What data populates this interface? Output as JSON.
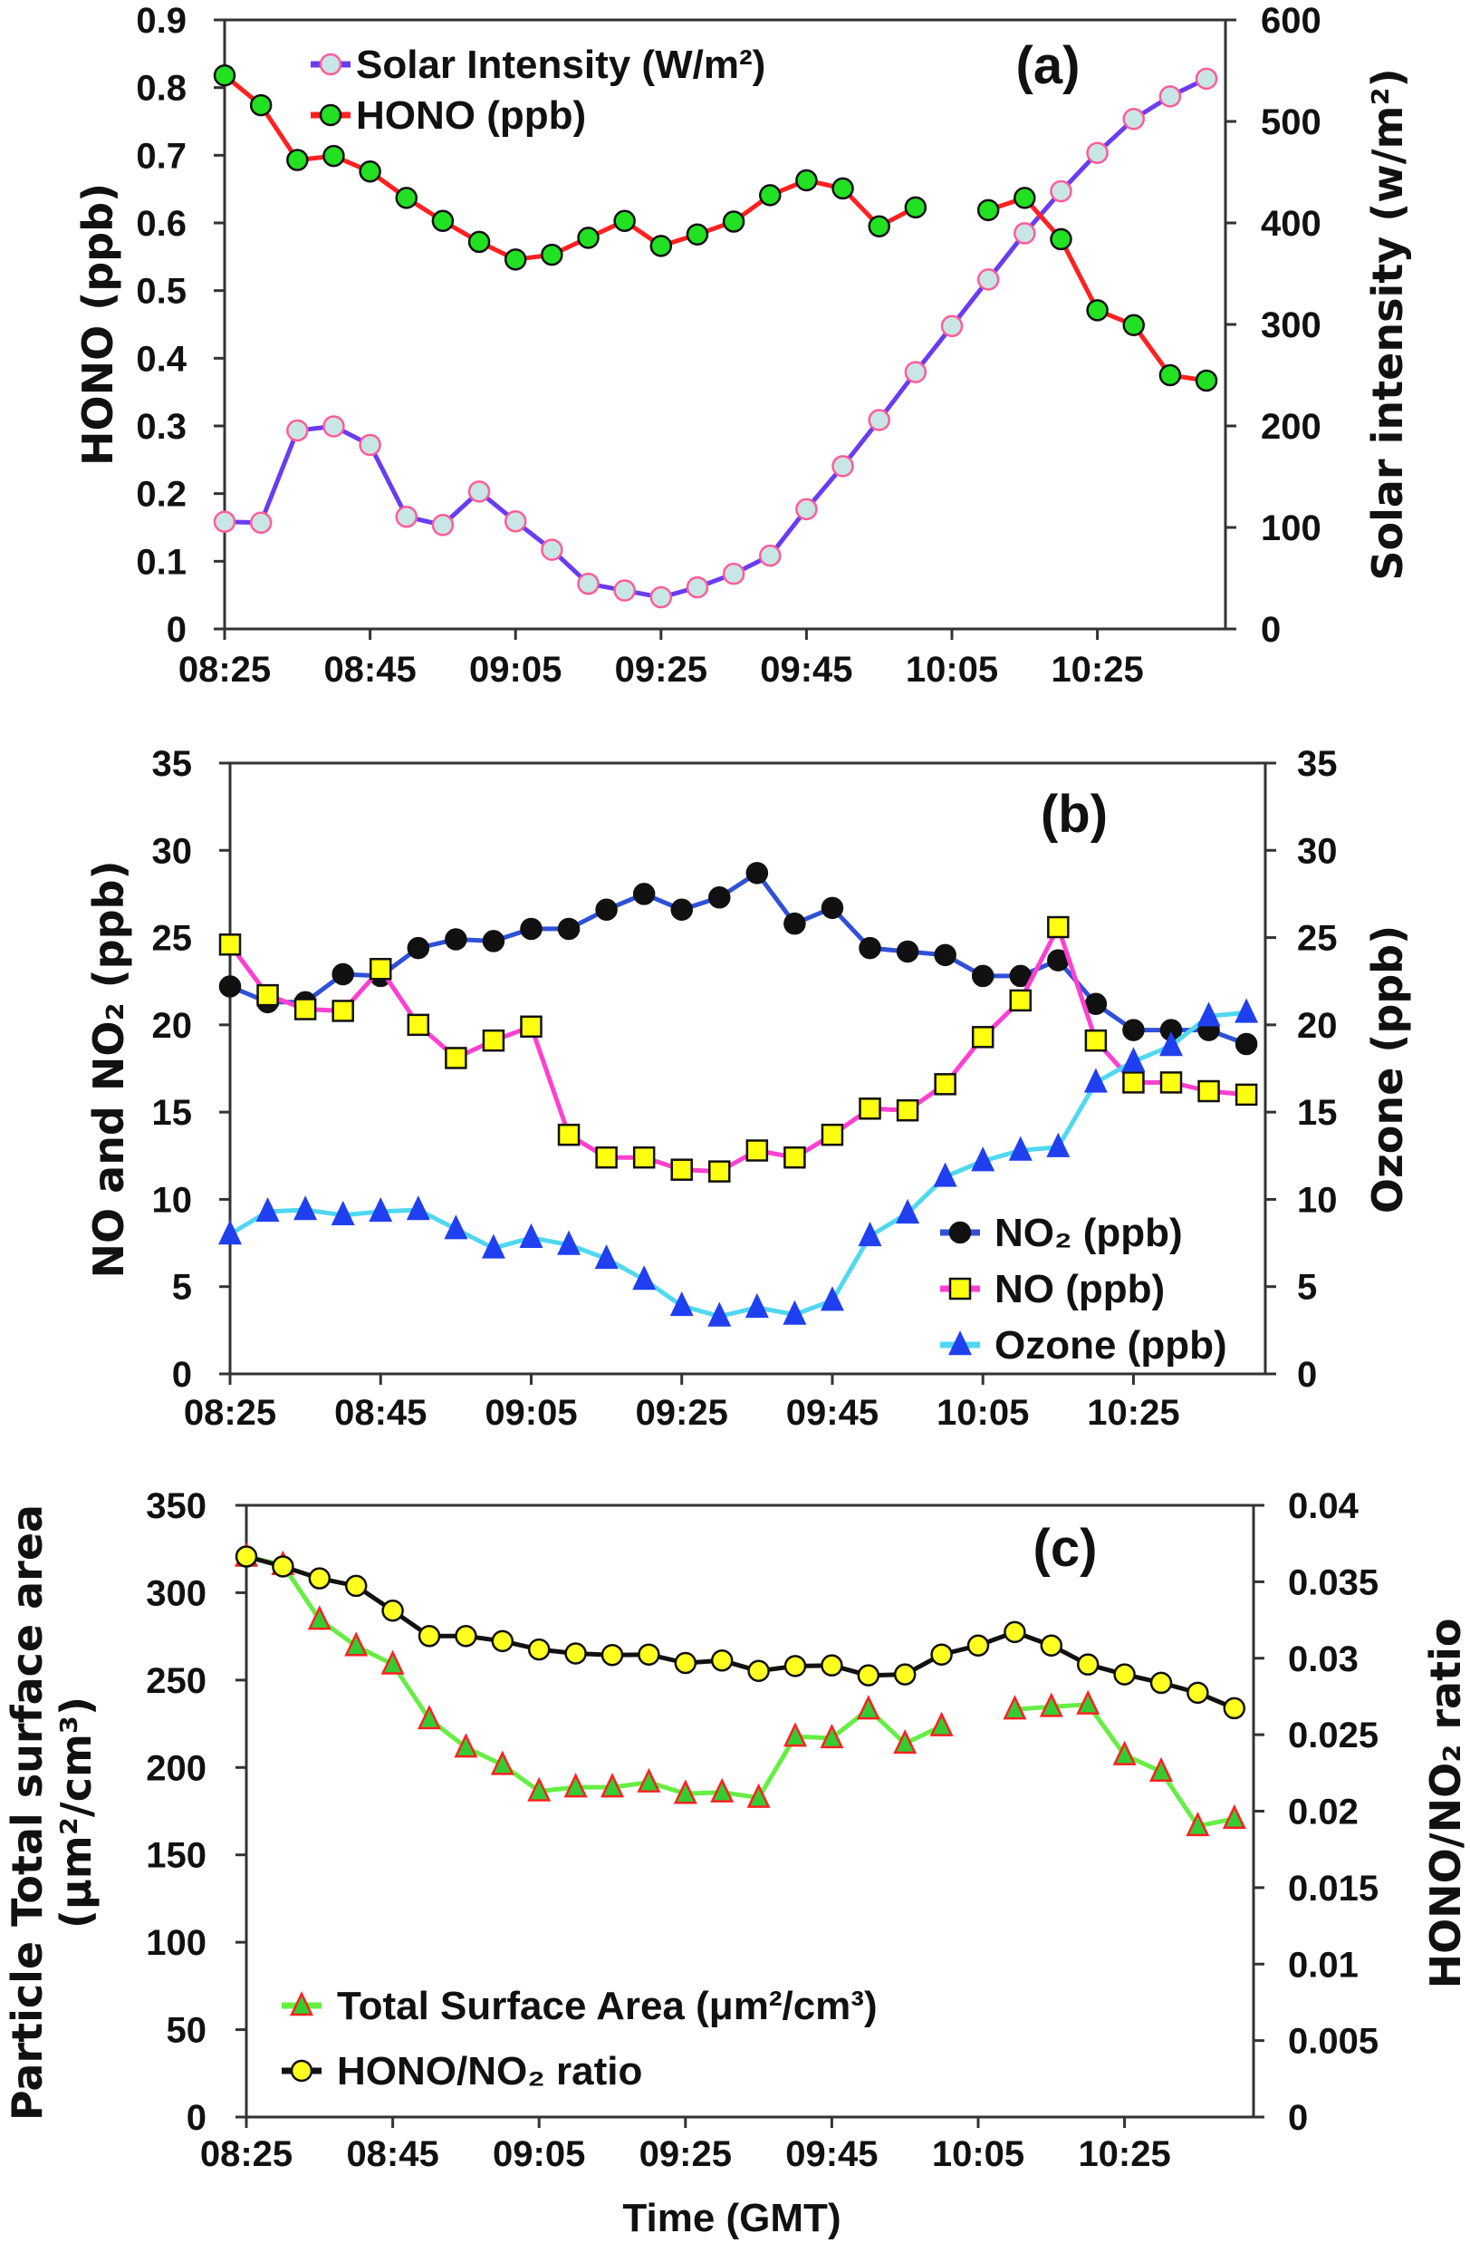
{
  "chart_data": [
    {
      "type": "line",
      "panel_label": "(a)",
      "x": [
        "08:25",
        "08:30",
        "08:35",
        "08:40",
        "08:45",
        "08:50",
        "08:55",
        "09:00",
        "09:05",
        "09:10",
        "09:15",
        "09:20",
        "09:25",
        "09:30",
        "09:35",
        "09:40",
        "09:45",
        "09:50",
        "09:55",
        "10:00",
        "10:05",
        "10:10",
        "10:15",
        "10:20",
        "10:25",
        "10:30",
        "10:35",
        "10:40"
      ],
      "xticks": [
        "08:25",
        "08:45",
        "09:05",
        "09:25",
        "09:45",
        "10:05",
        "10:25"
      ],
      "xlabel": "",
      "ylabel_left": "HONO (ppb)",
      "ylabel_right": "Solar intensity (w/m²)",
      "ylim_left": [
        0,
        0.9
      ],
      "ylim_right": [
        0,
        600
      ],
      "yticks_left": [
        "0",
        "0.1",
        "0.2",
        "0.3",
        "0.4",
        "0.5",
        "0.6",
        "0.7",
        "0.8",
        "0.9"
      ],
      "yticks_right": [
        "0",
        "100",
        "200",
        "300",
        "400",
        "500",
        "600"
      ],
      "grid": false,
      "legend_placement": "top-left",
      "series": [
        {
          "name": "Solar Intensity (W/m²)",
          "axis": "right",
          "line_color": "#6a3cf0",
          "marker": "circle",
          "marker_fill": "#c8e6e6",
          "marker_edge": "#ff5c9a",
          "values": [
            105.6,
            104.7,
            195.5,
            199.6,
            181.3,
            110.5,
            102.4,
            135.4,
            106,
            78,
            44.5,
            37.9,
            31.2,
            41,
            54.3,
            72.2,
            118,
            160.4,
            205.8,
            253,
            298.4,
            344.3,
            389.8,
            431.2,
            469,
            502.4,
            524.7,
            542.1
          ]
        },
        {
          "name": "HONO (ppb)",
          "axis": "left",
          "line_color": "#ff2020",
          "marker": "circle",
          "marker_fill": "#22e022",
          "marker_edge": "#111111",
          "values": [
            0.818,
            0.774,
            0.693,
            0.699,
            0.676,
            0.637,
            0.603,
            0.572,
            0.546,
            0.553,
            0.578,
            0.603,
            0.566,
            0.583,
            0.602,
            0.641,
            0.663,
            0.651,
            0.595,
            0.623,
            null,
            0.619,
            0.637,
            0.576,
            0.471,
            0.449,
            0.375,
            0.367
          ]
        }
      ]
    },
    {
      "type": "line",
      "panel_label": "(b)",
      "x": [
        "08:25",
        "08:30",
        "08:35",
        "08:40",
        "08:45",
        "08:50",
        "08:55",
        "09:00",
        "09:05",
        "09:10",
        "09:15",
        "09:20",
        "09:25",
        "09:30",
        "09:35",
        "09:40",
        "09:45",
        "09:50",
        "09:55",
        "10:00",
        "10:05",
        "10:10",
        "10:15",
        "10:20",
        "10:25",
        "10:30",
        "10:35",
        "10:40"
      ],
      "xticks": [
        "08:25",
        "08:45",
        "09:05",
        "09:25",
        "09:45",
        "10:05",
        "10:25"
      ],
      "xlabel": "",
      "ylabel_left": "NO and NO₂ (ppb)",
      "ylabel_right": "Ozone (ppb)",
      "ylim_left": [
        0,
        35
      ],
      "ylim_right": [
        0,
        35
      ],
      "yticks_left": [
        "0",
        "5",
        "10",
        "15",
        "20",
        "25",
        "30",
        "35"
      ],
      "yticks_right": [
        "0",
        "5",
        "10",
        "15",
        "20",
        "25",
        "30",
        "35"
      ],
      "grid": false,
      "legend_placement": "bottom-right",
      "series": [
        {
          "name": "NO₂ (ppb)",
          "axis": "left",
          "line_color": "#3050d8",
          "marker": "circle",
          "marker_fill": "#111111",
          "marker_edge": "#111111",
          "values": [
            22.2,
            21.3,
            21.3,
            22.9,
            22.8,
            24.4,
            24.9,
            24.8,
            25.5,
            25.5,
            26.6,
            27.5,
            26.6,
            27.3,
            28.7,
            25.8,
            26.7,
            24.4,
            24.2,
            24.0,
            22.8,
            22.8,
            23.7,
            21.2,
            19.7,
            19.7,
            19.7,
            18.9
          ]
        },
        {
          "name": "NO (ppb)",
          "axis": "left",
          "line_color": "#ff40d0",
          "marker": "square",
          "marker_fill": "#ffff10",
          "marker_edge": "#111111",
          "values": [
            24.6,
            21.7,
            20.9,
            20.8,
            23.2,
            20.0,
            18.1,
            19.1,
            19.9,
            13.7,
            12.4,
            12.4,
            11.7,
            11.6,
            12.8,
            12.4,
            13.7,
            15.2,
            15.1,
            16.6,
            19.3,
            21.4,
            25.6,
            19.1,
            16.7,
            16.7,
            16.2,
            16.0
          ]
        },
        {
          "name": "Ozone (ppb)",
          "axis": "right",
          "line_color": "#50d8f0",
          "marker": "triangle",
          "marker_fill": "#2040f0",
          "marker_edge": "#2040f0",
          "values": [
            8.0,
            9.3,
            9.4,
            9.1,
            9.3,
            9.4,
            8.3,
            7.2,
            7.8,
            7.4,
            6.6,
            5.4,
            3.9,
            3.3,
            3.8,
            3.4,
            4.2,
            7.9,
            9.2,
            11.3,
            12.2,
            12.8,
            13.0,
            16.7,
            17.9,
            18.8,
            20.5,
            20.7
          ]
        }
      ]
    },
    {
      "type": "line",
      "panel_label": "(c)",
      "x": [
        "08:25",
        "08:30",
        "08:35",
        "08:40",
        "08:45",
        "08:50",
        "08:55",
        "09:00",
        "09:05",
        "09:10",
        "09:15",
        "09:20",
        "09:25",
        "09:30",
        "09:35",
        "09:40",
        "09:45",
        "09:50",
        "09:55",
        "10:00",
        "10:05",
        "10:10",
        "10:15",
        "10:20",
        "10:25",
        "10:30",
        "10:35",
        "10:40"
      ],
      "xticks": [
        "08:25",
        "08:45",
        "09:05",
        "09:25",
        "09:45",
        "10:05",
        "10:25"
      ],
      "xlabel": "Time (GMT)",
      "ylabel_left": [
        "Particle Total surface area",
        "(μm²/cm³)"
      ],
      "ylabel_right": "HONO/NO₂ ratio",
      "ylim_left": [
        0,
        350
      ],
      "ylim_right": [
        0,
        0.04
      ],
      "yticks_left": [
        "0",
        "50",
        "100",
        "150",
        "200",
        "250",
        "300",
        "350"
      ],
      "yticks_right": [
        "0",
        "0.005",
        "0.01",
        "0.015",
        "0.02",
        "0.025",
        "0.03",
        "0.035",
        "0.04"
      ],
      "grid": false,
      "legend_placement": "bottom-left",
      "series": [
        {
          "name": "Total Surface Area (μm²/cm³)",
          "axis": "left",
          "line_color": "#66ee44",
          "marker": "triangle",
          "marker_fill": "#33cc33",
          "marker_edge": "#ff2020",
          "values": [
            320.7,
            315.9,
            284.6,
            269.5,
            259.0,
            227.7,
            211.5,
            201.5,
            186.4,
            188.7,
            188.7,
            191.5,
            185.0,
            185.8,
            182.7,
            217.7,
            216.8,
            233.3,
            213.7,
            223.7,
            null,
            233.3,
            234.7,
            236.1,
            207.1,
            197.7,
            166.5,
            170.7
          ]
        },
        {
          "name": "HONO/NO₂ ratio",
          "axis": "right",
          "line_color": "#111111",
          "marker": "circle",
          "marker_fill": "#ffff20",
          "marker_edge": "#111111",
          "values": [
            0.03665,
            0.036,
            0.03522,
            0.03473,
            0.03311,
            0.03145,
            0.03145,
            0.03112,
            0.03057,
            0.03031,
            0.03021,
            0.03024,
            0.02969,
            0.02985,
            0.02917,
            0.02949,
            0.02953,
            0.02888,
            0.02894,
            0.03024,
            0.03083,
            0.03171,
            0.03083,
            0.02959,
            0.02894,
            0.02839,
            0.02774,
            0.02673
          ]
        }
      ]
    }
  ]
}
